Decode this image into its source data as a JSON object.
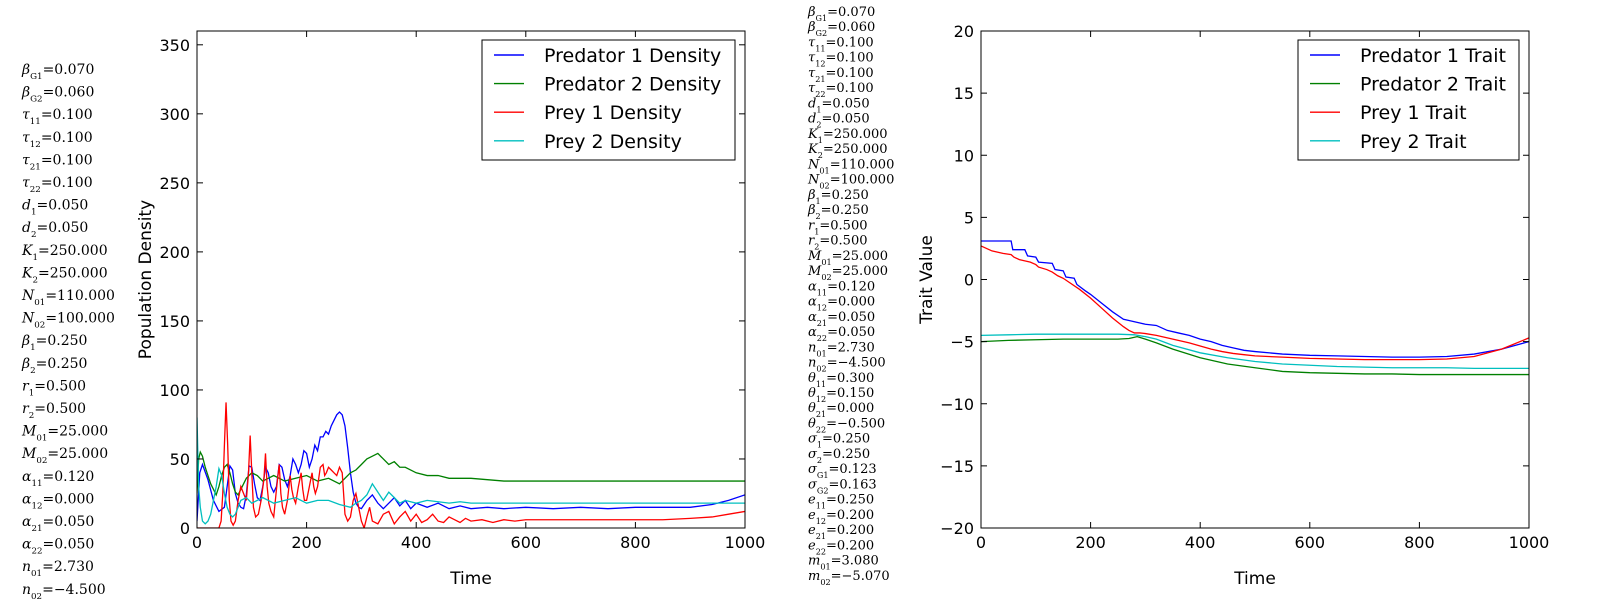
{
  "params_left": [
    "β_G1=0.070",
    "β_G2=0.060",
    "τ_11=0.100",
    "τ_12=0.100",
    "τ_21=0.100",
    "τ_22=0.100",
    "d_1=0.050",
    "d_2=0.050",
    "K_1=250.000",
    "K_2=250.000",
    "N_01=110.000",
    "N_02=100.000",
    "β_1=0.250",
    "β_2=0.250",
    "r_1=0.500",
    "r_2=0.500",
    "M_01=25.000",
    "M_02=25.000",
    "α_11=0.120",
    "α_12=0.000",
    "α_21=0.050",
    "α_22=0.050",
    "n_01=2.730",
    "n_02=−4.500"
  ],
  "params_mid": [
    "β_G1=0.070",
    "β_G2=0.060",
    "τ_11=0.100",
    "τ_12=0.100",
    "τ_21=0.100",
    "τ_22=0.100",
    "d_1=0.050",
    "d_2=0.050",
    "K_1=250.000",
    "K_2=250.000",
    "N_01=110.000",
    "N_02=100.000",
    "β_1=0.250",
    "β_2=0.250",
    "r_1=0.500",
    "r_2=0.500",
    "M_01=25.000",
    "M_02=25.000",
    "α_11=0.120",
    "α_12=0.000",
    "α_21=0.050",
    "α_22=0.050",
    "n_01=2.730",
    "n_02=−4.500",
    "θ_11=0.300",
    "θ_12=0.150",
    "θ_21=0.000",
    "θ_22=−0.500",
    "σ_1=0.250",
    "σ_2=0.250",
    "σ_G1=0.123",
    "σ_G2=0.163",
    "e_11=0.250",
    "e_12=0.200",
    "e_21=0.200",
    "e_22=0.200",
    "m_01=3.080",
    "m_02=−5.070"
  ],
  "chart_data": [
    {
      "type": "line",
      "xlabel": "Time",
      "ylabel": "Population Density",
      "xlim": [
        0,
        1000
      ],
      "ylim": [
        0,
        360
      ],
      "xticks": [
        0,
        200,
        400,
        600,
        800,
        1000
      ],
      "yticks": [
        0,
        50,
        100,
        150,
        200,
        250,
        300,
        350
      ],
      "legend_position": "top-right",
      "series": [
        {
          "name": "Predator 1 Density",
          "color": "#0000ff",
          "x": [
            0,
            5,
            10,
            20,
            30,
            40,
            50,
            55,
            60,
            65,
            70,
            75,
            80,
            85,
            90,
            95,
            100,
            105,
            110,
            115,
            120,
            125,
            130,
            135,
            140,
            145,
            150,
            155,
            160,
            165,
            170,
            175,
            180,
            185,
            190,
            195,
            200,
            205,
            210,
            215,
            220,
            225,
            230,
            235,
            240,
            245,
            250,
            255,
            260,
            265,
            270,
            275,
            280,
            285,
            290,
            295,
            300,
            310,
            320,
            330,
            340,
            350,
            360,
            370,
            380,
            390,
            400,
            420,
            440,
            460,
            480,
            500,
            530,
            560,
            600,
            650,
            700,
            750,
            800,
            850,
            900,
            940,
            970,
            1000
          ],
          "y": [
            5,
            40,
            46,
            35,
            20,
            12,
            15,
            30,
            45,
            42,
            25,
            18,
            15,
            14,
            24,
            45,
            44,
            32,
            22,
            20,
            30,
            44,
            40,
            30,
            26,
            30,
            46,
            44,
            35,
            30,
            38,
            50,
            46,
            40,
            46,
            56,
            54,
            44,
            50,
            60,
            56,
            66,
            66,
            70,
            68,
            74,
            78,
            82,
            84,
            82,
            74,
            58,
            40,
            26,
            18,
            15,
            14,
            20,
            24,
            18,
            14,
            18,
            22,
            16,
            20,
            14,
            18,
            15,
            18,
            14,
            16,
            14,
            15,
            14,
            15,
            14,
            15,
            14,
            15,
            15,
            15,
            17,
            20,
            24
          ]
        },
        {
          "name": "Predator 2 Density",
          "color": "#008000",
          "x": [
            0,
            3,
            6,
            10,
            15,
            20,
            25,
            30,
            35,
            40,
            45,
            50,
            55,
            60,
            65,
            70,
            75,
            80,
            90,
            100,
            110,
            120,
            130,
            140,
            160,
            180,
            200,
            220,
            240,
            260,
            280,
            290,
            300,
            310,
            320,
            330,
            340,
            350,
            360,
            370,
            380,
            400,
            420,
            440,
            460,
            480,
            500,
            530,
            560,
            600,
            700,
            800,
            900,
            1000
          ],
          "y": [
            25,
            50,
            55,
            52,
            44,
            38,
            32,
            28,
            24,
            30,
            38,
            44,
            46,
            40,
            32,
            26,
            24,
            28,
            36,
            40,
            38,
            34,
            36,
            38,
            34,
            36,
            38,
            34,
            36,
            32,
            40,
            42,
            46,
            50,
            52,
            54,
            50,
            46,
            48,
            44,
            44,
            40,
            38,
            38,
            36,
            36,
            36,
            35,
            34,
            34,
            34,
            34,
            34,
            34
          ]
        },
        {
          "name": "Prey 1 Density",
          "color": "#ff0000",
          "x": [
            0,
            10,
            20,
            30,
            40,
            44,
            47,
            50,
            53,
            56,
            59,
            62,
            66,
            70,
            75,
            80,
            85,
            90,
            94,
            97,
            100,
            103,
            107,
            112,
            117,
            122,
            125,
            128,
            131,
            135,
            140,
            145,
            150,
            153,
            156,
            160,
            165,
            170,
            173,
            176,
            180,
            185,
            190,
            193,
            196,
            200,
            205,
            210,
            213,
            216,
            220,
            225,
            230,
            233,
            236,
            240,
            245,
            250,
            255,
            260,
            265,
            270,
            275,
            280,
            285,
            290,
            295,
            300,
            305,
            310,
            315,
            320,
            330,
            340,
            350,
            360,
            370,
            380,
            390,
            400,
            410,
            420,
            430,
            440,
            450,
            460,
            470,
            480,
            490,
            500,
            520,
            540,
            560,
            580,
            600,
            630,
            660,
            700,
            750,
            800,
            850,
            900,
            940,
            970,
            1000
          ],
          "y": [
            0,
            0,
            0,
            0,
            0,
            5,
            25,
            60,
            91,
            60,
            20,
            5,
            2,
            5,
            20,
            30,
            25,
            20,
            40,
            67,
            40,
            15,
            8,
            10,
            20,
            35,
            54,
            30,
            18,
            12,
            8,
            28,
            46,
            25,
            15,
            10,
            20,
            38,
            28,
            22,
            18,
            30,
            40,
            28,
            20,
            20,
            30,
            40,
            30,
            25,
            30,
            44,
            46,
            38,
            40,
            44,
            42,
            40,
            38,
            44,
            40,
            10,
            5,
            8,
            20,
            25,
            15,
            5,
            0,
            8,
            15,
            5,
            3,
            10,
            12,
            3,
            8,
            12,
            5,
            10,
            4,
            6,
            10,
            5,
            4,
            8,
            6,
            4,
            7,
            5,
            6,
            4,
            6,
            5,
            6,
            6,
            6,
            6,
            6,
            6,
            6,
            7,
            8,
            10,
            12
          ]
        },
        {
          "name": "Prey 2 Density",
          "color": "#00bfbf",
          "x": [
            0,
            3,
            6,
            10,
            15,
            20,
            25,
            30,
            35,
            40,
            45,
            50,
            55,
            60,
            65,
            70,
            75,
            80,
            90,
            100,
            110,
            120,
            130,
            140,
            160,
            180,
            200,
            220,
            240,
            260,
            280,
            290,
            300,
            310,
            320,
            330,
            340,
            350,
            360,
            370,
            380,
            400,
            420,
            440,
            460,
            480,
            500,
            550,
            600,
            700,
            800,
            900,
            1000
          ],
          "y": [
            80,
            30,
            15,
            5,
            3,
            5,
            10,
            20,
            30,
            43,
            38,
            25,
            15,
            10,
            8,
            10,
            15,
            20,
            22,
            18,
            20,
            22,
            20,
            18,
            20,
            22,
            18,
            20,
            20,
            17,
            15,
            18,
            20,
            24,
            32,
            26,
            20,
            26,
            22,
            18,
            20,
            18,
            20,
            19,
            18,
            19,
            18,
            18,
            18,
            18,
            18,
            18,
            18
          ]
        }
      ]
    },
    {
      "type": "line",
      "xlabel": "Time",
      "ylabel": "Trait Value",
      "xlim": [
        0,
        1000
      ],
      "ylim": [
        -20,
        20
      ],
      "xticks": [
        0,
        200,
        400,
        600,
        800,
        1000
      ],
      "yticks": [
        -20,
        -15,
        -10,
        -5,
        0,
        5,
        10,
        15,
        20
      ],
      "legend_position": "top-right",
      "series": [
        {
          "name": "Predator 1 Trait",
          "color": "#0000ff",
          "x": [
            0,
            10,
            20,
            30,
            40,
            55,
            58,
            80,
            85,
            100,
            105,
            130,
            135,
            150,
            155,
            170,
            175,
            190,
            200,
            220,
            240,
            260,
            270,
            280,
            290,
            300,
            320,
            340,
            360,
            380,
            400,
            420,
            440,
            460,
            480,
            500,
            550,
            600,
            650,
            700,
            750,
            800,
            850,
            900,
            950,
            1000
          ],
          "y": [
            3.1,
            3.1,
            3.1,
            3.1,
            3.1,
            3.1,
            2.4,
            2.4,
            1.9,
            1.8,
            1.4,
            1.3,
            0.8,
            0.7,
            0.2,
            0.1,
            -0.4,
            -0.9,
            -1.2,
            -1.9,
            -2.6,
            -3.2,
            -3.3,
            -3.4,
            -3.5,
            -3.6,
            -3.7,
            -4.1,
            -4.3,
            -4.5,
            -4.8,
            -5.0,
            -5.3,
            -5.5,
            -5.7,
            -5.8,
            -6.0,
            -6.1,
            -6.15,
            -6.2,
            -6.25,
            -6.25,
            -6.2,
            -6.0,
            -5.6,
            -5.0
          ]
        },
        {
          "name": "Predator 2 Trait",
          "color": "#008000",
          "x": [
            0,
            50,
            100,
            150,
            200,
            250,
            270,
            285,
            300,
            320,
            350,
            400,
            450,
            500,
            550,
            600,
            650,
            700,
            750,
            800,
            850,
            900,
            950,
            1000
          ],
          "y": [
            -5.0,
            -4.9,
            -4.85,
            -4.8,
            -4.8,
            -4.8,
            -4.75,
            -4.6,
            -4.8,
            -5.1,
            -5.6,
            -6.3,
            -6.8,
            -7.1,
            -7.4,
            -7.5,
            -7.55,
            -7.6,
            -7.6,
            -7.65,
            -7.65,
            -7.65,
            -7.65,
            -7.65
          ]
        },
        {
          "name": "Prey 1 Trait",
          "color": "#ff0000",
          "x": [
            0,
            10,
            20,
            30,
            40,
            55,
            60,
            70,
            80,
            90,
            100,
            105,
            120,
            130,
            140,
            150,
            160,
            180,
            200,
            220,
            240,
            260,
            270,
            280,
            290,
            300,
            320,
            340,
            360,
            380,
            400,
            420,
            440,
            460,
            480,
            500,
            550,
            600,
            650,
            700,
            750,
            800,
            850,
            900,
            950,
            1000
          ],
          "y": [
            2.7,
            2.5,
            2.3,
            2.2,
            2.1,
            2.0,
            1.8,
            1.6,
            1.5,
            1.4,
            1.2,
            1.0,
            0.8,
            0.6,
            0.3,
            0.1,
            -0.2,
            -0.8,
            -1.5,
            -2.3,
            -3.1,
            -3.8,
            -4.1,
            -4.3,
            -4.3,
            -4.35,
            -4.5,
            -4.7,
            -4.9,
            -5.1,
            -5.35,
            -5.6,
            -5.8,
            -5.95,
            -6.05,
            -6.15,
            -6.25,
            -6.35,
            -6.4,
            -6.45,
            -6.45,
            -6.45,
            -6.4,
            -6.2,
            -5.6,
            -4.7
          ]
        },
        {
          "name": "Prey 2 Trait",
          "color": "#00bfbf",
          "x": [
            0,
            50,
            100,
            150,
            200,
            250,
            280,
            300,
            320,
            350,
            400,
            450,
            500,
            550,
            600,
            650,
            700,
            750,
            800,
            850,
            900,
            950,
            1000
          ],
          "y": [
            -4.5,
            -4.45,
            -4.4,
            -4.4,
            -4.4,
            -4.4,
            -4.45,
            -4.6,
            -4.8,
            -5.3,
            -5.9,
            -6.3,
            -6.6,
            -6.8,
            -6.9,
            -7.0,
            -7.05,
            -7.1,
            -7.1,
            -7.1,
            -7.15,
            -7.15,
            -7.15
          ]
        }
      ]
    }
  ]
}
